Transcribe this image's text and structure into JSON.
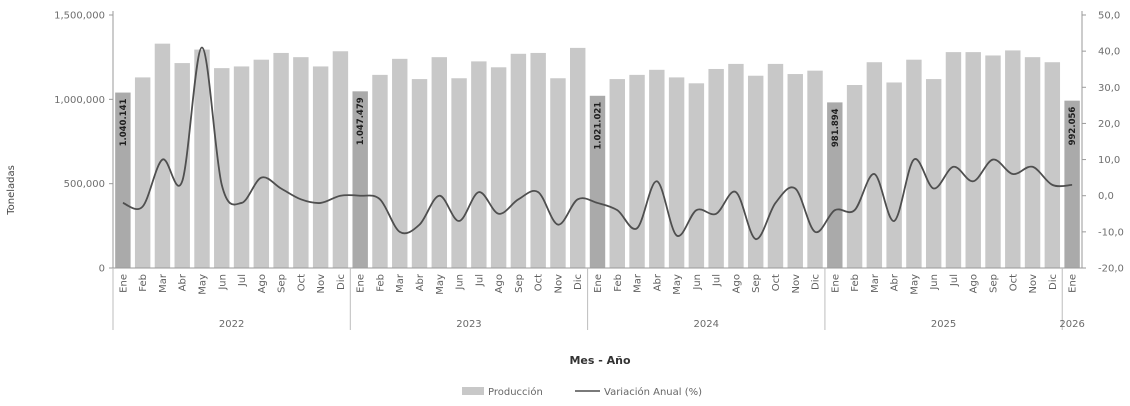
{
  "chart_data": {
    "type": "bar",
    "ylabel": "Toneladas",
    "xlabel": "Mes - Año",
    "y_left_ticks": [
      "0",
      "500,000",
      "1,000,000",
      "1,500,000"
    ],
    "y_left_range": [
      0,
      1500000
    ],
    "y_right_ticks": [
      "-20,0",
      "-10,0",
      "0,0",
      "10,0",
      "20,0",
      "30,0",
      "40,0",
      "50,0"
    ],
    "y_right_range": [
      -20,
      50
    ],
    "months": [
      "Ene",
      "Feb",
      "Mar",
      "Abr",
      "May",
      "Jun",
      "Jul",
      "Ago",
      "Sep",
      "Oct",
      "Nov",
      "Dic",
      "Ene",
      "Feb",
      "Mar",
      "Abr",
      "May",
      "Jun",
      "Jul",
      "Ago",
      "Sep",
      "Oct",
      "Nov",
      "Dic",
      "Ene",
      "Feb",
      "Mar",
      "Abr",
      "May",
      "Jun",
      "Jul",
      "Ago",
      "Sep",
      "Oct",
      "Nov",
      "Dic",
      "Ene",
      "Feb",
      "Mar",
      "Abr",
      "May",
      "Jun",
      "Jul",
      "Ago",
      "Sep",
      "Oct",
      "Nov",
      "Dic",
      "Ene"
    ],
    "years": [
      {
        "label": "2022",
        "start": 0,
        "end": 11
      },
      {
        "label": "2023",
        "start": 12,
        "end": 23
      },
      {
        "label": "2024",
        "start": 24,
        "end": 35
      },
      {
        "label": "2025",
        "start": 36,
        "end": 47
      },
      {
        "label": "2026",
        "start": 48,
        "end": 48
      }
    ],
    "series": [
      {
        "name": "Producción",
        "values": [
          1040141,
          1130000,
          1330000,
          1215000,
          1295000,
          1185000,
          1195000,
          1235000,
          1275000,
          1250000,
          1195000,
          1285000,
          1047479,
          1145000,
          1240000,
          1120000,
          1250000,
          1125000,
          1225000,
          1190000,
          1270000,
          1275000,
          1125000,
          1305000,
          1021021,
          1120000,
          1145000,
          1175000,
          1130000,
          1095000,
          1180000,
          1210000,
          1140000,
          1210000,
          1150000,
          1170000,
          981894,
          1085000,
          1220000,
          1100000,
          1235000,
          1120000,
          1280000,
          1280000,
          1260000,
          1290000,
          1250000,
          1220000,
          992056
        ]
      },
      {
        "name": "Variación Anual (%)",
        "values": [
          -2,
          -3,
          10,
          4,
          41,
          3,
          -2,
          5,
          2,
          -1,
          -2,
          0,
          0,
          -1,
          -10,
          -8,
          0,
          -7,
          1,
          -5,
          -1,
          1,
          -8,
          -1,
          -2,
          -4,
          -9,
          4,
          -11,
          -4,
          -5,
          1,
          -12,
          -2,
          2,
          -10,
          -4,
          -4,
          6,
          -7,
          10,
          2,
          8,
          4,
          10,
          6,
          8,
          3,
          3
        ]
      }
    ],
    "bar_labels": [
      {
        "index": 0,
        "text": "1.040.141"
      },
      {
        "index": 12,
        "text": "1.047.479"
      },
      {
        "index": 24,
        "text": "1.021.021"
      },
      {
        "index": 36,
        "text": "981.894"
      },
      {
        "index": 48,
        "text": "992.056"
      }
    ],
    "legend": [
      {
        "label": "Producción",
        "type": "bar"
      },
      {
        "label": "Variación Anual (%)",
        "type": "line"
      }
    ],
    "legend_position": "bottom",
    "colors": {
      "bar": "#c8c8c8",
      "bar_highlight": "#aaaaaa",
      "line": "#4f4f4f",
      "axis": "#8a8a8a"
    }
  }
}
